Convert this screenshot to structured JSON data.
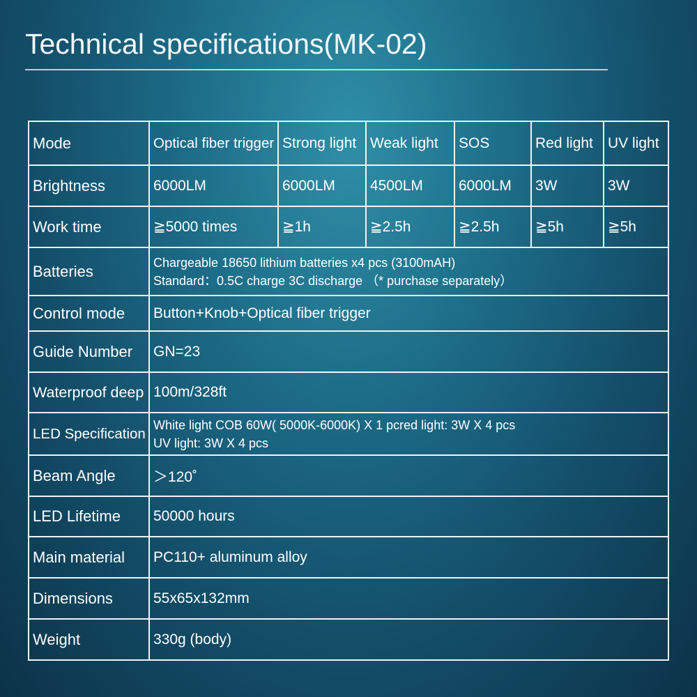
{
  "title": "Technical specifications(MK-02)",
  "table": {
    "rows": [
      [
        "Mode",
        "Optical fiber trigger",
        "Strong light",
        "Weak light",
        "SOS",
        "Red light",
        "UV light"
      ],
      [
        "Brightness",
        "6000LM",
        "6000LM",
        "4500LM",
        "6000LM",
        "3W",
        "3W"
      ],
      [
        "Work time",
        "≧5000 times",
        "≧1h",
        "≧2.5h",
        "≧2.5h",
        "≧5h",
        "≧5h"
      ],
      [
        "Batteries",
        [
          "Chargeable 18650 lithium batteries x4 pcs (3100mAH)",
          "Standard：0.5C charge 3C discharge （* purchase separately）"
        ]
      ],
      [
        "Control mode",
        "Button+Knob+Optical fiber trigger"
      ],
      [
        "Guide Number",
        "GN=23"
      ],
      [
        "Waterproof deep",
        "100m/328ft"
      ],
      [
        "LED Specification",
        [
          "White light COB 60W( 5000K-6000K) X 1 pcred light: 3W X 4 pcs",
          "UV light: 3W X 4 pcs"
        ]
      ],
      [
        "Beam Angle",
        "＞120˚"
      ],
      [
        "LED Lifetime",
        "50000 hours"
      ],
      [
        "Main material",
        "PC110+ aluminum alloy"
      ],
      [
        "Dimensions",
        "55x65x132mm"
      ],
      [
        "Weight",
        "330g (body)"
      ]
    ]
  }
}
